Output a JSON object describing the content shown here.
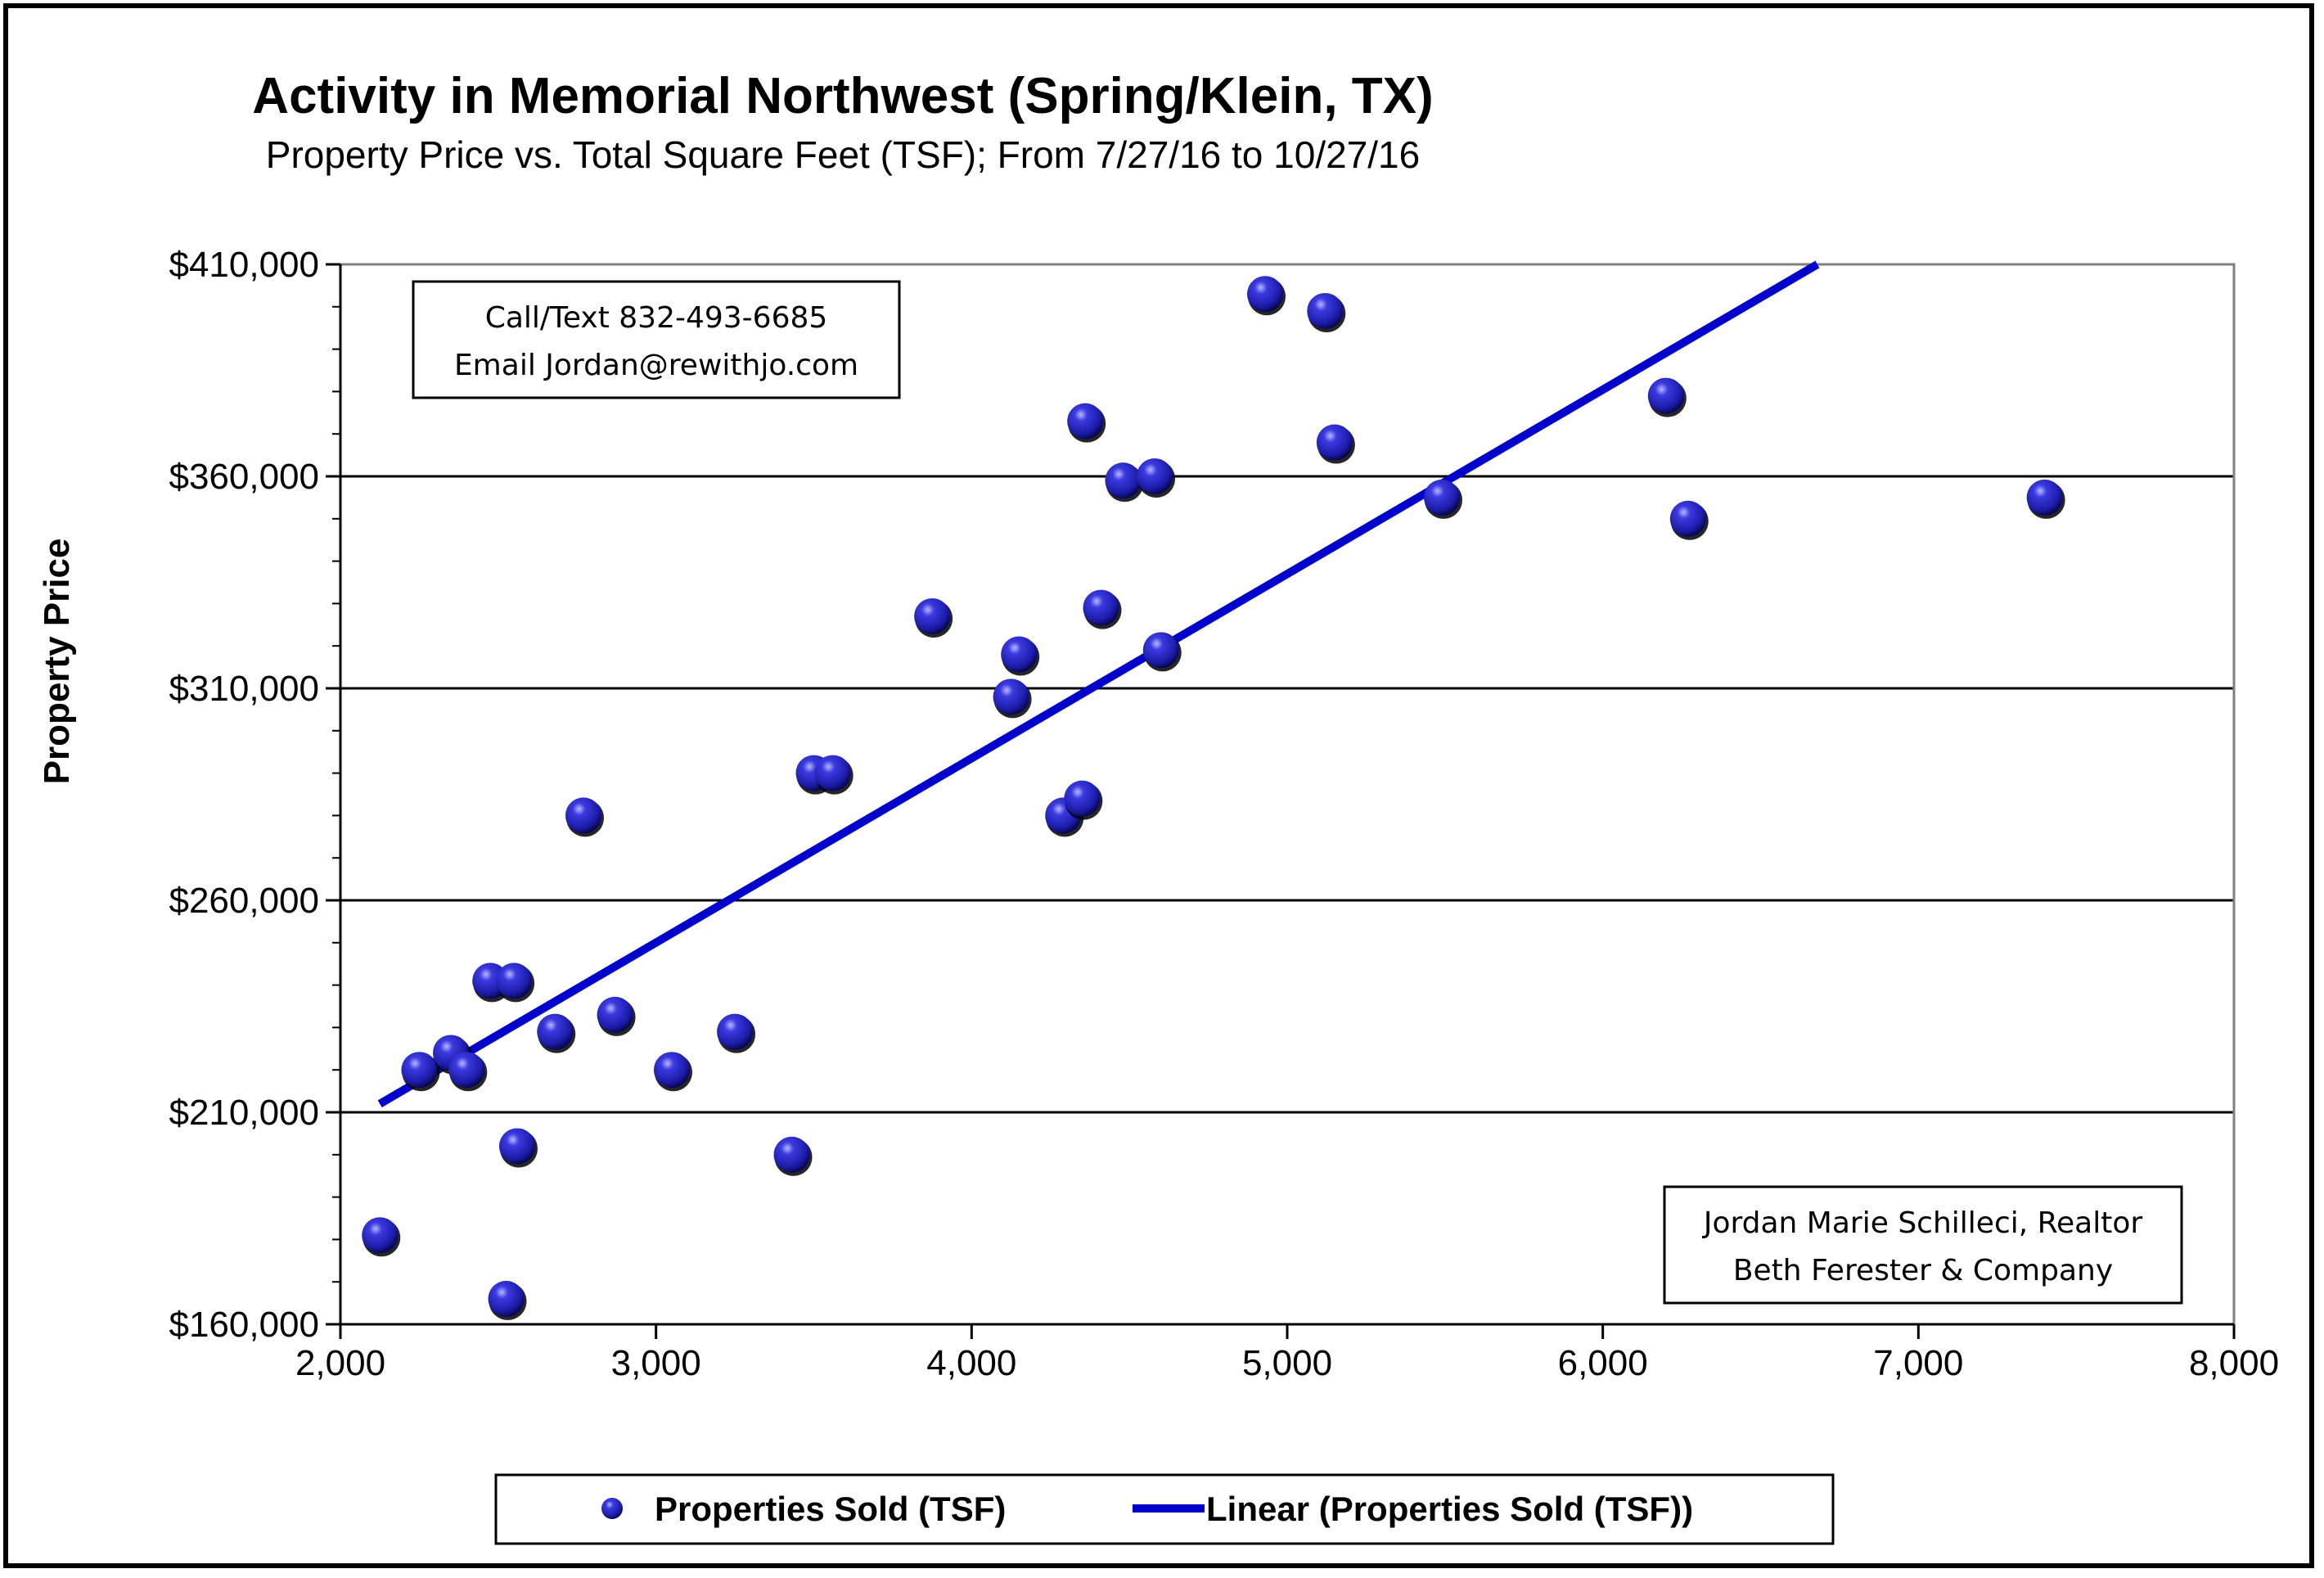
{
  "chart_data": {
    "type": "scatter",
    "title": "Activity in Memorial Northwest (Spring/Klein, TX)",
    "subtitle": "Property Price vs. Total Square Feet (TSF); From 7/27/16 to 10/27/16",
    "xlabel": "",
    "ylabel": "Property Price",
    "xlim": [
      2000,
      8000
    ],
    "ylim": [
      160000,
      410000
    ],
    "x_ticks": [
      2000,
      3000,
      4000,
      5000,
      6000,
      7000,
      8000
    ],
    "x_tick_labels": [
      "2,000",
      "3,000",
      "4,000",
      "5,000",
      "6,000",
      "7,000",
      "8,000"
    ],
    "y_ticks": [
      160000,
      210000,
      260000,
      310000,
      360000,
      410000
    ],
    "y_tick_labels": [
      "$160,000",
      "$210,000",
      "$260,000",
      "$310,000",
      "$360,000",
      "$410,000"
    ],
    "grid": "horizontal",
    "legend_position": "bottom",
    "series": [
      {
        "name": "Properties Sold  (TSF)",
        "kind": "scatter",
        "color": "#1c1ca8",
        "points": [
          [
            2125,
            181000
          ],
          [
            2250,
            220000
          ],
          [
            2350,
            224000
          ],
          [
            2400,
            220000
          ],
          [
            2475,
            241000
          ],
          [
            2525,
            166000
          ],
          [
            2550,
            241000
          ],
          [
            2560,
            202000
          ],
          [
            2680,
            229000
          ],
          [
            2770,
            280000
          ],
          [
            2870,
            233000
          ],
          [
            3050,
            220000
          ],
          [
            3250,
            229000
          ],
          [
            3430,
            200000
          ],
          [
            3500,
            290000
          ],
          [
            3560,
            290000
          ],
          [
            3875,
            327000
          ],
          [
            4125,
            308000
          ],
          [
            4150,
            318000
          ],
          [
            4290,
            280000
          ],
          [
            4350,
            284000
          ],
          [
            4360,
            373000
          ],
          [
            4410,
            329000
          ],
          [
            4480,
            359000
          ],
          [
            4580,
            360000
          ],
          [
            4600,
            319000
          ],
          [
            4930,
            403000
          ],
          [
            5120,
            399000
          ],
          [
            5150,
            368000
          ],
          [
            5490,
            355000
          ],
          [
            6200,
            379000
          ],
          [
            6270,
            350000
          ],
          [
            7400,
            355000
          ]
        ]
      },
      {
        "name": "Linear  (Properties Sold  (TSF))",
        "kind": "trendline",
        "color": "#0000cc",
        "points": [
          [
            2125,
            212000
          ],
          [
            6680,
            410000
          ]
        ]
      }
    ]
  },
  "notes": {
    "contact_line1": "Call/Text 832-493-6685",
    "contact_line2": "Email Jordan@rewithjo.com",
    "realtor_line1": "Jordan Marie Schilleci, Realtor",
    "realtor_line2": "Beth Ferester & Company"
  },
  "colors": {
    "point_fill": "#1c1ca8",
    "trendline": "#0000cc",
    "gridline": "#000000"
  }
}
